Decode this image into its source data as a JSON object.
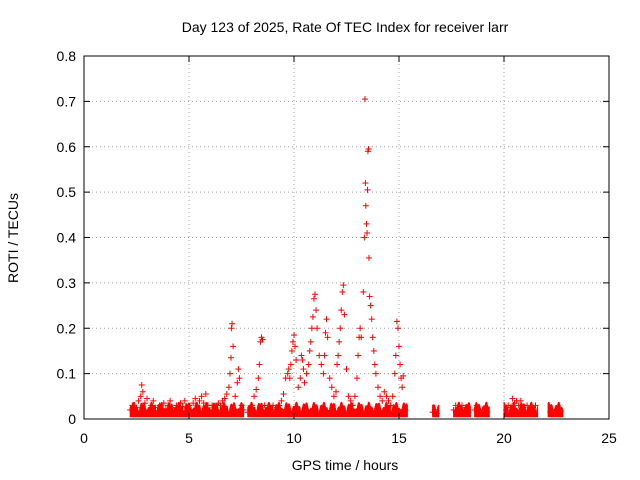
{
  "chart_data": {
    "type": "scatter",
    "title": "Day 123 of 2025, Rate Of TEC Index for receiver larr",
    "xlabel": "GPS time / hours",
    "ylabel": "ROTI / TECUs",
    "xlim": [
      0,
      25
    ],
    "ylim": [
      0,
      0.8
    ],
    "xticks": [
      0,
      5,
      10,
      15,
      20,
      25
    ],
    "xtick_labels": [
      "0",
      "5",
      "10",
      "15",
      "20",
      "25"
    ],
    "yticks": [
      0,
      0.1,
      0.2,
      0.3,
      0.4,
      0.5,
      0.6,
      0.7,
      0.8
    ],
    "ytick_labels": [
      "0",
      "0.1",
      "0.2",
      "0.3",
      "0.4",
      "0.5",
      "0.6",
      "0.7",
      "0.8"
    ],
    "grid": true,
    "marker": "+",
    "marker_color": "#ff0000",
    "series": [
      {
        "points": [
          [
            2.2,
            0.02
          ],
          [
            2.3,
            0.03
          ],
          [
            2.4,
            0.015
          ],
          [
            2.5,
            0.025
          ],
          [
            2.6,
            0.04
          ],
          [
            2.7,
            0.05
          ],
          [
            2.75,
            0.075
          ],
          [
            2.8,
            0.06
          ],
          [
            2.9,
            0.035
          ],
          [
            3.0,
            0.045
          ],
          [
            3.1,
            0.02
          ],
          [
            3.2,
            0.03
          ],
          [
            3.3,
            0.04
          ],
          [
            3.4,
            0.025
          ],
          [
            3.5,
            0.018
          ],
          [
            3.6,
            0.03
          ],
          [
            3.7,
            0.02
          ],
          [
            3.8,
            0.035
          ],
          [
            3.9,
            0.022
          ],
          [
            4.0,
            0.03
          ],
          [
            4.1,
            0.04
          ],
          [
            4.2,
            0.025
          ],
          [
            4.3,
            0.018
          ],
          [
            4.4,
            0.03
          ],
          [
            4.5,
            0.02
          ],
          [
            4.6,
            0.035
          ],
          [
            4.7,
            0.028
          ],
          [
            4.8,
            0.04
          ],
          [
            4.9,
            0.025
          ],
          [
            5.0,
            0.03
          ],
          [
            5.1,
            0.02
          ],
          [
            5.2,
            0.035
          ],
          [
            5.3,
            0.045
          ],
          [
            5.4,
            0.03
          ],
          [
            5.5,
            0.04
          ],
          [
            5.6,
            0.05
          ],
          [
            5.7,
            0.035
          ],
          [
            5.8,
            0.055
          ],
          [
            5.9,
            0.03
          ],
          [
            6.0,
            0.02
          ],
          [
            6.1,
            0.03
          ],
          [
            6.2,
            0.025
          ],
          [
            6.3,
            0.02
          ],
          [
            6.4,
            0.035
          ],
          [
            6.5,
            0.03
          ],
          [
            6.6,
            0.04
          ],
          [
            6.7,
            0.045
          ],
          [
            6.8,
            0.055
          ],
          [
            6.9,
            0.07
          ],
          [
            6.95,
            0.1
          ],
          [
            7.0,
            0.135
          ],
          [
            7.02,
            0.2
          ],
          [
            7.05,
            0.21
          ],
          [
            7.1,
            0.16
          ],
          [
            7.2,
            0.05
          ],
          [
            7.3,
            0.08
          ],
          [
            7.35,
            0.11
          ],
          [
            7.4,
            0.09
          ],
          [
            7.5,
            0.03
          ],
          [
            7.6,
            0.02
          ],
          [
            7.8,
            0.015
          ],
          [
            8.0,
            0.03
          ],
          [
            8.1,
            0.05
          ],
          [
            8.2,
            0.065
          ],
          [
            8.3,
            0.09
          ],
          [
            8.35,
            0.12
          ],
          [
            8.4,
            0.17
          ],
          [
            8.45,
            0.18
          ],
          [
            8.5,
            0.175
          ],
          [
            8.6,
            0.03
          ],
          [
            8.7,
            0.02
          ],
          [
            8.8,
            0.025
          ],
          [
            9.0,
            0.03
          ],
          [
            9.1,
            0.02
          ],
          [
            9.2,
            0.025
          ],
          [
            9.3,
            0.03
          ],
          [
            9.4,
            0.04
          ],
          [
            9.5,
            0.055
          ],
          [
            9.6,
            0.09
          ],
          [
            9.7,
            0.1
          ],
          [
            9.75,
            0.11
          ],
          [
            9.8,
            0.09
          ],
          [
            9.85,
            0.12
          ],
          [
            9.9,
            0.15
          ],
          [
            9.95,
            0.17
          ],
          [
            10.0,
            0.185
          ],
          [
            10.05,
            0.16
          ],
          [
            10.1,
            0.13
          ],
          [
            10.2,
            0.07
          ],
          [
            10.3,
            0.09
          ],
          [
            10.35,
            0.14
          ],
          [
            10.4,
            0.13
          ],
          [
            10.45,
            0.11
          ],
          [
            10.5,
            0.08
          ],
          [
            10.6,
            0.1
          ],
          [
            10.7,
            0.12
          ],
          [
            10.75,
            0.15
          ],
          [
            10.8,
            0.17
          ],
          [
            10.85,
            0.2
          ],
          [
            10.9,
            0.225
          ],
          [
            10.95,
            0.265
          ],
          [
            11.0,
            0.275
          ],
          [
            11.05,
            0.24
          ],
          [
            11.1,
            0.2
          ],
          [
            11.2,
            0.14
          ],
          [
            11.3,
            0.12
          ],
          [
            11.4,
            0.1
          ],
          [
            11.45,
            0.14
          ],
          [
            11.5,
            0.19
          ],
          [
            11.55,
            0.22
          ],
          [
            11.6,
            0.18
          ],
          [
            11.7,
            0.09
          ],
          [
            11.8,
            0.07
          ],
          [
            11.9,
            0.05
          ],
          [
            12.0,
            0.06
          ],
          [
            12.05,
            0.12
          ],
          [
            12.1,
            0.14
          ],
          [
            12.15,
            0.17
          ],
          [
            12.2,
            0.2
          ],
          [
            12.25,
            0.24
          ],
          [
            12.3,
            0.28
          ],
          [
            12.35,
            0.295
          ],
          [
            12.4,
            0.23
          ],
          [
            12.5,
            0.11
          ],
          [
            12.6,
            0.05
          ],
          [
            12.7,
            0.04
          ],
          [
            12.8,
            0.03
          ],
          [
            12.9,
            0.05
          ],
          [
            13.0,
            0.09
          ],
          [
            13.05,
            0.14
          ],
          [
            13.1,
            0.18
          ],
          [
            13.15,
            0.2
          ],
          [
            13.2,
            0.18
          ],
          [
            13.3,
            0.28
          ],
          [
            13.35,
            0.4
          ],
          [
            13.38,
            0.705
          ],
          [
            13.4,
            0.52
          ],
          [
            13.42,
            0.47
          ],
          [
            13.45,
            0.43
          ],
          [
            13.48,
            0.41
          ],
          [
            13.5,
            0.505
          ],
          [
            13.52,
            0.59
          ],
          [
            13.55,
            0.595
          ],
          [
            13.57,
            0.355
          ],
          [
            13.6,
            0.27
          ],
          [
            13.65,
            0.25
          ],
          [
            13.7,
            0.22
          ],
          [
            13.75,
            0.18
          ],
          [
            13.8,
            0.15
          ],
          [
            13.85,
            0.12
          ],
          [
            13.9,
            0.1
          ],
          [
            14.0,
            0.07
          ],
          [
            14.1,
            0.05
          ],
          [
            14.2,
            0.04
          ],
          [
            14.3,
            0.06
          ],
          [
            14.4,
            0.05
          ],
          [
            14.5,
            0.04
          ],
          [
            14.6,
            0.03
          ],
          [
            14.7,
            0.05
          ],
          [
            14.8,
            0.1
          ],
          [
            14.85,
            0.14
          ],
          [
            14.9,
            0.215
          ],
          [
            14.95,
            0.2
          ],
          [
            15.0,
            0.16
          ],
          [
            15.05,
            0.12
          ],
          [
            15.1,
            0.09
          ],
          [
            15.15,
            0.07
          ],
          [
            15.2,
            0.095
          ],
          [
            15.3,
            0.02
          ],
          [
            16.6,
            0.015
          ],
          [
            16.7,
            0.02
          ],
          [
            16.8,
            0.012
          ],
          [
            17.6,
            0.02
          ],
          [
            17.7,
            0.03
          ],
          [
            17.8,
            0.025
          ],
          [
            17.9,
            0.015
          ],
          [
            18.0,
            0.03
          ],
          [
            18.1,
            0.02
          ],
          [
            18.2,
            0.025
          ],
          [
            18.3,
            0.015
          ],
          [
            18.6,
            0.02
          ],
          [
            18.7,
            0.03
          ],
          [
            18.8,
            0.015
          ],
          [
            19.0,
            0.02
          ],
          [
            19.1,
            0.025
          ],
          [
            19.2,
            0.015
          ],
          [
            20.1,
            0.02
          ],
          [
            20.2,
            0.03
          ],
          [
            20.3,
            0.025
          ],
          [
            20.4,
            0.045
          ],
          [
            20.5,
            0.035
          ],
          [
            20.6,
            0.04
          ],
          [
            20.7,
            0.03
          ],
          [
            20.8,
            0.04
          ],
          [
            20.9,
            0.025
          ],
          [
            21.0,
            0.02
          ],
          [
            21.1,
            0.03
          ],
          [
            21.2,
            0.015
          ],
          [
            21.4,
            0.02
          ],
          [
            21.5,
            0.03
          ],
          [
            22.2,
            0.015
          ],
          [
            22.3,
            0.02
          ],
          [
            22.4,
            0.015
          ],
          [
            22.5,
            0.02
          ],
          [
            22.6,
            0.012
          ],
          [
            22.7,
            0.018
          ]
        ]
      }
    ]
  }
}
